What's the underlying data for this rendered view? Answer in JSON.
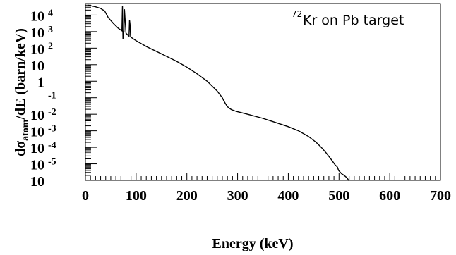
{
  "chart_data": {
    "type": "line",
    "annotation": {
      "sup": "72",
      "text": "Kr on Pb target"
    },
    "xlabel": "Energy (keV)",
    "ylabel": {
      "prefix": "d",
      "sigma": "σ",
      "sub": "atom",
      "suffix": "/dE (barn/keV)"
    },
    "xlim": [
      0,
      700
    ],
    "ylim_log10": [
      -6,
      4.7
    ],
    "x_ticks": [
      0,
      100,
      200,
      300,
      400,
      500,
      600,
      700
    ],
    "y_tick_labels": [
      {
        "base": "10",
        "exp": "4",
        "log": 4
      },
      {
        "base": "10",
        "exp": "3",
        "log": 3
      },
      {
        "base": "10",
        "exp": "2",
        "log": 2
      },
      {
        "base": "10",
        "exp": "",
        "log": 1
      },
      {
        "base": "1",
        "exp": "",
        "log": 0
      },
      {
        "base": "",
        "exp": "-1",
        "log": -1
      },
      {
        "base": "10",
        "exp": "-2",
        "log": -2
      },
      {
        "base": "10",
        "exp": "-3",
        "log": -3
      },
      {
        "base": "10",
        "exp": "-4",
        "log": -4
      },
      {
        "base": "10",
        "exp": "-5",
        "log": -5
      },
      {
        "base": "10",
        "exp": "",
        "log": -6
      }
    ],
    "series": [
      {
        "x": [
          5,
          20,
          30,
          38,
          45,
          55,
          65,
          72,
          73,
          74,
          75,
          76,
          77,
          80,
          86,
          87,
          88,
          89,
          95,
          100,
          120,
          150,
          180,
          200,
          220,
          240,
          260,
          270,
          273,
          276,
          278,
          282,
          288,
          295,
          300,
          320,
          350,
          380,
          400,
          420,
          440,
          455,
          465,
          475,
          485,
          492,
          497,
          499,
          505,
          510,
          514,
          517,
          519,
          520.5
        ],
        "log_y": [
          4.6,
          4.5,
          4.4,
          4.25,
          3.85,
          3.5,
          3.2,
          3.05,
          4.55,
          2.55,
          3.0,
          3.0,
          4.35,
          2.9,
          2.72,
          3.7,
          3.45,
          2.68,
          2.55,
          2.45,
          2.1,
          1.65,
          1.2,
          0.85,
          0.45,
          0.0,
          -0.6,
          -1.0,
          -1.2,
          -1.35,
          -1.45,
          -1.6,
          -1.72,
          -1.8,
          -1.85,
          -2.0,
          -2.25,
          -2.55,
          -2.75,
          -3.0,
          -3.35,
          -3.7,
          -4.0,
          -4.35,
          -4.75,
          -5.05,
          -5.2,
          -5.4,
          -5.6,
          -5.7,
          -5.8,
          -5.9,
          -6.0,
          -6.0
        ]
      }
    ]
  }
}
